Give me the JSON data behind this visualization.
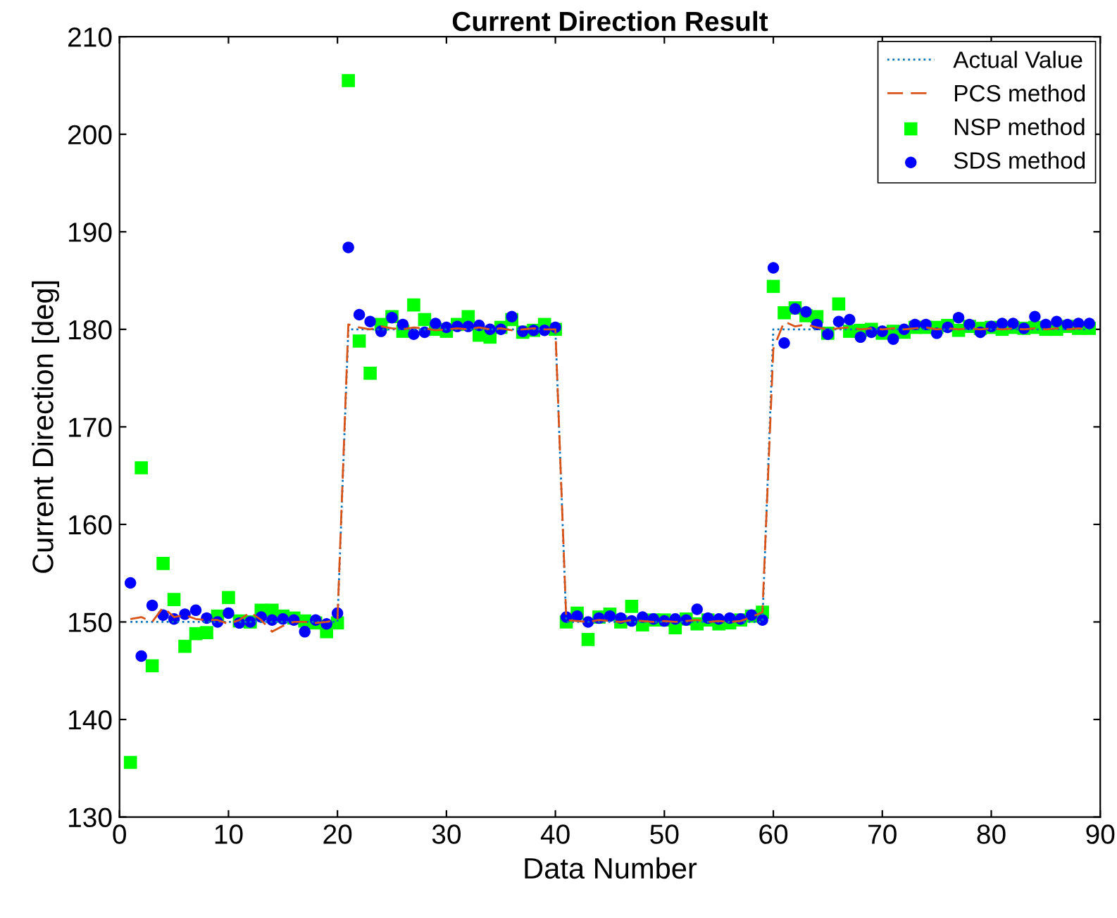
{
  "chart_data": {
    "type": "line",
    "title": "Current Direction Result",
    "xlabel": "Data Number",
    "ylabel": "Current Direction [deg]",
    "x": [
      1,
      2,
      3,
      4,
      5,
      6,
      7,
      8,
      9,
      10,
      11,
      12,
      13,
      14,
      15,
      16,
      17,
      18,
      19,
      20,
      21,
      22,
      23,
      24,
      25,
      26,
      27,
      28,
      29,
      30,
      31,
      32,
      33,
      34,
      35,
      36,
      37,
      38,
      39,
      40,
      41,
      42,
      43,
      44,
      45,
      46,
      47,
      48,
      49,
      50,
      51,
      52,
      53,
      54,
      55,
      56,
      57,
      58,
      59,
      60,
      61,
      62,
      63,
      64,
      65,
      66,
      67,
      68,
      69,
      70,
      71,
      72,
      73,
      74,
      75,
      76,
      77,
      78,
      79,
      80,
      81,
      82,
      83,
      84,
      85,
      86,
      87,
      88,
      89
    ],
    "xlim": [
      0,
      90
    ],
    "xticks": [
      0,
      10,
      20,
      30,
      40,
      50,
      60,
      70,
      80,
      90
    ],
    "ylim": [
      130,
      210
    ],
    "yticks": [
      130,
      140,
      150,
      160,
      170,
      180,
      190,
      200,
      210
    ],
    "grid": false,
    "legend": "top right",
    "series": [
      {
        "name": "Actual Value",
        "color": "#0072bd",
        "line_style": "dotted",
        "marker": "none",
        "values": [
          150,
          150,
          150,
          150,
          150,
          150,
          150,
          150,
          150,
          150,
          150,
          150,
          150,
          150,
          150,
          150,
          150,
          150,
          150,
          150,
          180,
          180,
          180,
          180,
          180,
          180,
          180,
          180,
          180,
          180,
          180,
          180,
          180,
          180,
          180,
          180,
          180,
          180,
          180,
          180,
          150,
          150,
          150,
          150,
          150,
          150,
          150,
          150,
          150,
          150,
          150,
          150,
          150,
          150,
          150,
          150,
          150,
          150,
          150,
          180,
          180,
          180,
          180,
          180,
          180,
          180,
          180,
          180,
          180,
          180,
          180,
          180,
          180,
          180,
          180,
          180,
          180,
          180,
          180,
          180,
          180,
          180,
          180,
          180,
          180,
          180,
          180,
          180,
          180
        ]
      },
      {
        "name": "PCS method",
        "color": "#d95319",
        "line_style": "dashed",
        "marker": "none",
        "values": [
          150.3,
          150.5,
          150.0,
          151.5,
          150.5,
          150.7,
          150.3,
          150.2,
          150.2,
          149.8,
          150.2,
          151.0,
          150.2,
          149.0,
          149.6,
          150.0,
          150.0,
          149.9,
          150.0,
          150.2,
          180.5,
          180.2,
          180.0,
          180.3,
          180.1,
          180.0,
          180.2,
          180.1,
          179.9,
          180.0,
          180.1,
          180.0,
          180.2,
          180.0,
          180.1,
          179.9,
          180.0,
          180.1,
          180.0,
          180.0,
          150.2,
          150.1,
          150.0,
          150.2,
          150.1,
          150.0,
          150.2,
          150.1,
          150.0,
          150.1,
          150.0,
          150.1,
          150.2,
          150.0,
          150.1,
          150.0,
          150.1,
          150.5,
          151.0,
          178.0,
          180.8,
          180.3,
          180.5,
          180.2,
          180.0,
          180.1,
          180.2,
          180.0,
          180.1,
          180.0,
          180.1,
          180.0,
          180.1,
          180.2,
          180.0,
          180.1,
          180.0,
          180.1,
          180.0,
          180.1,
          180.0,
          180.1,
          180.0,
          180.1,
          180.0,
          180.1,
          180.0,
          180.1,
          180.0
        ]
      },
      {
        "name": "NSP method",
        "type": "scatter",
        "color": "#00ff00",
        "marker": "square",
        "values": [
          135.6,
          165.8,
          145.5,
          156.0,
          152.3,
          147.5,
          148.8,
          148.9,
          150.6,
          152.5,
          150.1,
          150.0,
          151.2,
          151.2,
          150.6,
          150.4,
          150.1,
          149.9,
          149.0,
          149.9,
          205.5,
          178.8,
          175.5,
          180.5,
          181.3,
          179.8,
          182.5,
          181.0,
          180.0,
          179.8,
          180.5,
          181.3,
          179.4,
          179.2,
          180.2,
          181.0,
          179.7,
          179.9,
          180.5,
          180.0,
          150.0,
          150.9,
          148.2,
          150.5,
          150.8,
          150.0,
          151.6,
          149.7,
          150.2,
          150.2,
          149.4,
          150.3,
          149.8,
          150.2,
          149.8,
          149.9,
          150.2,
          150.6,
          151.0,
          184.4,
          181.7,
          182.2,
          181.4,
          181.3,
          179.6,
          182.6,
          179.8,
          179.9,
          180.0,
          179.6,
          179.8,
          179.7,
          180.2,
          180.2,
          180.2,
          180.4,
          179.9,
          180.3,
          180.1,
          180.2,
          180.0,
          180.2,
          180.1,
          180.2,
          180.0,
          180.0,
          180.3,
          180.1,
          180.1
        ]
      },
      {
        "name": "SDS method",
        "type": "scatter",
        "color": "#0000ff",
        "marker": "circle",
        "values": [
          154.0,
          146.5,
          151.7,
          150.7,
          150.3,
          150.8,
          151.2,
          150.4,
          150.0,
          150.9,
          149.9,
          150.0,
          150.5,
          150.2,
          150.3,
          150.2,
          149.0,
          150.2,
          149.8,
          150.9,
          188.4,
          181.5,
          180.8,
          179.8,
          181.2,
          180.5,
          179.5,
          179.7,
          180.6,
          180.2,
          180.3,
          180.3,
          180.4,
          180.0,
          180.0,
          181.3,
          179.8,
          179.9,
          179.9,
          180.2,
          150.5,
          150.6,
          150.0,
          150.4,
          150.6,
          150.4,
          150.1,
          150.5,
          150.3,
          150.1,
          150.3,
          150.2,
          151.3,
          150.4,
          150.3,
          150.4,
          150.3,
          150.7,
          150.2,
          186.3,
          178.6,
          182.1,
          181.8,
          180.5,
          179.5,
          180.8,
          181.0,
          179.2,
          179.7,
          179.8,
          179.0,
          180.0,
          180.5,
          180.5,
          179.6,
          180.2,
          181.2,
          180.5,
          179.7,
          180.3,
          180.6,
          180.6,
          180.1,
          181.3,
          180.5,
          180.8,
          180.5,
          180.6,
          180.6
        ]
      }
    ]
  }
}
